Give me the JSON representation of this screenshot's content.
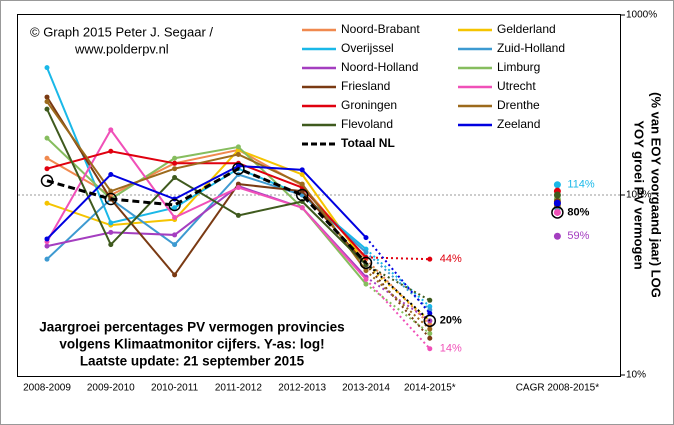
{
  "chart_data": {
    "type": "line",
    "credit": [
      "© Graph 2015 Peter J. Segaar /",
      "www.polderpv.nl"
    ],
    "subtitle": [
      "Jaargroei percentages PV vermogen provincies",
      "volgens Klimaatmonitor  cijfers. Y-as: log!",
      "Laatste update: 21 september 2015"
    ],
    "y_label": [
      "YOY groei PV vermogen",
      "(% van EOY voorgaand jaar) LOG"
    ],
    "categories": [
      "2008-2009",
      "2009-2010",
      "2010-2011",
      "2011-2012",
      "2012-2013",
      "2013-2014",
      "2014-2015*",
      null,
      "CAGR 2008-2015*"
    ],
    "log_y": true,
    "ylim": [
      10,
      1000
    ],
    "yticks": [
      {
        "value": 10,
        "label": "10%"
      },
      {
        "value": 100,
        "label": "100%"
      },
      {
        "value": 1000,
        "label": "1000%"
      }
    ],
    "reference_line": 100,
    "series": [
      {
        "name": "Noord-Brabant",
        "color": "#f0894f",
        "values": [
          160,
          100,
          150,
          178,
          113,
          44,
          19,
          null,
          90
        ]
      },
      {
        "name": "Gelderland",
        "color": "#f5c400",
        "values": [
          90,
          68,
          73,
          178,
          130,
          41,
          20,
          null,
          85
        ]
      },
      {
        "name": "Overijssel",
        "color": "#1ab8e8",
        "values": [
          510,
          70,
          85,
          140,
          100,
          50,
          24,
          null,
          114
        ],
        "value_labels": [
          null,
          null,
          null,
          null,
          null,
          null,
          null,
          null,
          "114%"
        ]
      },
      {
        "name": "Zuid-Holland",
        "color": "#3d9ad1",
        "values": [
          44,
          95,
          53,
          130,
          100,
          48,
          23,
          null,
          85
        ]
      },
      {
        "name": "Noord-Holland",
        "color": "#a43ec0",
        "values": [
          52,
          62,
          60,
          112,
          85,
          35,
          20,
          null,
          59
        ],
        "value_labels": [
          null,
          null,
          null,
          null,
          null,
          null,
          null,
          null,
          "59%"
        ]
      },
      {
        "name": "Limburg",
        "color": "#86bd5e",
        "values": [
          207,
          95,
          160,
          185,
          85,
          32,
          17,
          null,
          95
        ]
      },
      {
        "name": "Friesland",
        "color": "#7a3a13",
        "values": [
          350,
          95,
          36,
          115,
          105,
          41,
          16,
          null,
          92
        ]
      },
      {
        "name": "Utrecht",
        "color": "#f050b8",
        "values": [
          55,
          230,
          75,
          110,
          85,
          34,
          14,
          null,
          80
        ],
        "value_labels": [
          null,
          null,
          null,
          null,
          null,
          null,
          "14%",
          null,
          null
        ]
      },
      {
        "name": "Groningen",
        "color": "#e0000f",
        "values": [
          140,
          175,
          150,
          150,
          110,
          45,
          44,
          null,
          105
        ],
        "value_labels": [
          null,
          null,
          null,
          null,
          null,
          null,
          "44%",
          null,
          null
        ]
      },
      {
        "name": "Drenthe",
        "color": "#9c6a1c",
        "values": [
          330,
          105,
          140,
          168,
          115,
          38,
          18,
          null,
          88
        ]
      },
      {
        "name": "Flevoland",
        "color": "#3f5a1e",
        "values": [
          300,
          53,
          125,
          77,
          92,
          41,
          26,
          null,
          100
        ]
      },
      {
        "name": "Zeeland",
        "color": "#0000e0",
        "values": [
          57,
          130,
          95,
          145,
          138,
          58,
          22,
          null,
          90
        ]
      },
      {
        "name": "Totaal NL",
        "color": "#000000",
        "dashed": true,
        "values": [
          120,
          95,
          88,
          140,
          100,
          42,
          20,
          null,
          80
        ],
        "value_labels": [
          null,
          null,
          null,
          null,
          null,
          null,
          "20%",
          null,
          "80%"
        ]
      }
    ]
  }
}
